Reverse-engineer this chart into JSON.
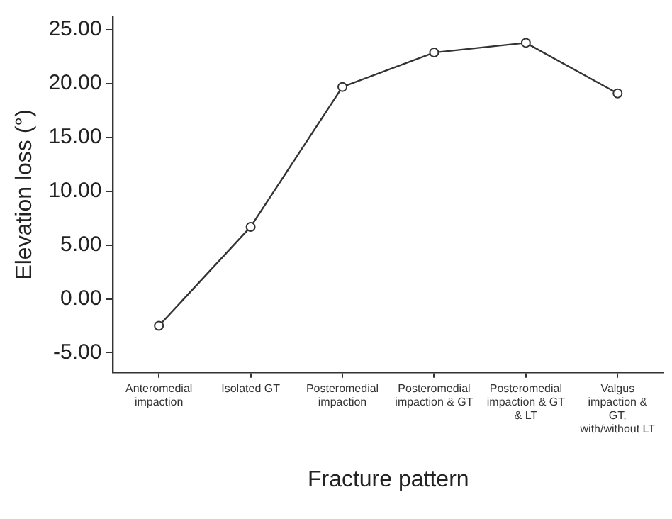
{
  "chart_data": {
    "type": "line",
    "xlabel": "Fracture pattern",
    "ylabel": "Elevation loss (°)",
    "categories": [
      "Anteromedial impaction",
      "Isolated GT",
      "Posteromedial impaction",
      "Posteromedial impaction & GT",
      "Posteromedial impaction & GT & LT",
      "Valgus impaction & GT, with/without LT"
    ],
    "series": [
      {
        "color": "#333333",
        "values": [
          -2.5,
          6.7,
          19.7,
          22.9,
          23.8,
          19.1
        ]
      }
    ],
    "ylim": [
      -6.8,
      26.2
    ],
    "yticks": [
      {
        "value": -5,
        "label": "-5.00"
      },
      {
        "value": 0,
        "label": "0.00"
      },
      {
        "value": 5,
        "label": "5.00"
      },
      {
        "value": 10,
        "label": "10.00"
      },
      {
        "value": 15,
        "label": "15.00"
      },
      {
        "value": 20,
        "label": "20.00"
      },
      {
        "value": 25,
        "label": "25.00"
      }
    ],
    "grid": false,
    "legend": false,
    "marker": "circle",
    "line_style": "solid"
  }
}
